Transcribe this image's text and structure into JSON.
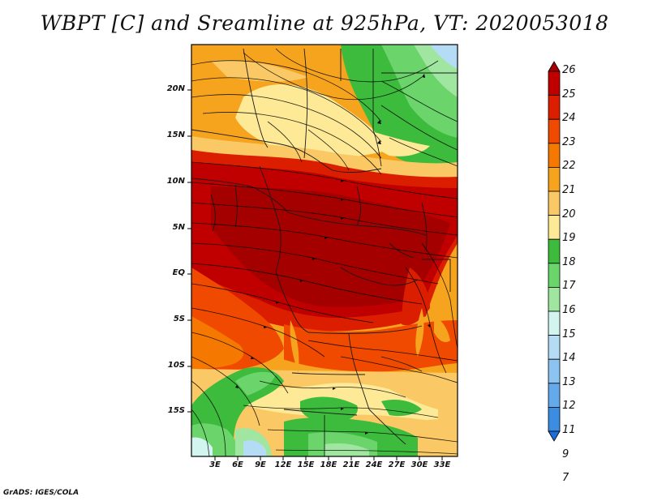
{
  "title": "WBPT [C] and Sreamline at 925hPa, VT: 2020053018",
  "credit": "GrADS: IGES/COLA",
  "map": {
    "lat_labels": [
      "20N",
      "15N",
      "10N",
      "5N",
      "EQ",
      "5S",
      "10S",
      "15S"
    ],
    "lon_labels": [
      "3E",
      "6E",
      "9E",
      "12E",
      "15E",
      "18E",
      "21E",
      "24E",
      "27E",
      "30E",
      "33E"
    ]
  },
  "colorbar": {
    "labels": [
      "26",
      "25",
      "24",
      "23",
      "22",
      "21",
      "20",
      "19",
      "18",
      "17",
      "16",
      "15",
      "14",
      "13",
      "12",
      "11",
      "9",
      "7"
    ],
    "colors": [
      "#a50000",
      "#c00000",
      "#dc1e00",
      "#f04a00",
      "#f57800",
      "#f6a31e",
      "#fac864",
      "#fde996",
      "#3cbb3c",
      "#6bd46b",
      "#a0e6a0",
      "#d2f5f0",
      "#b4dcf5",
      "#8cc3f0",
      "#64aaeb",
      "#3c8ce1",
      "#1e6ed7"
    ]
  }
}
